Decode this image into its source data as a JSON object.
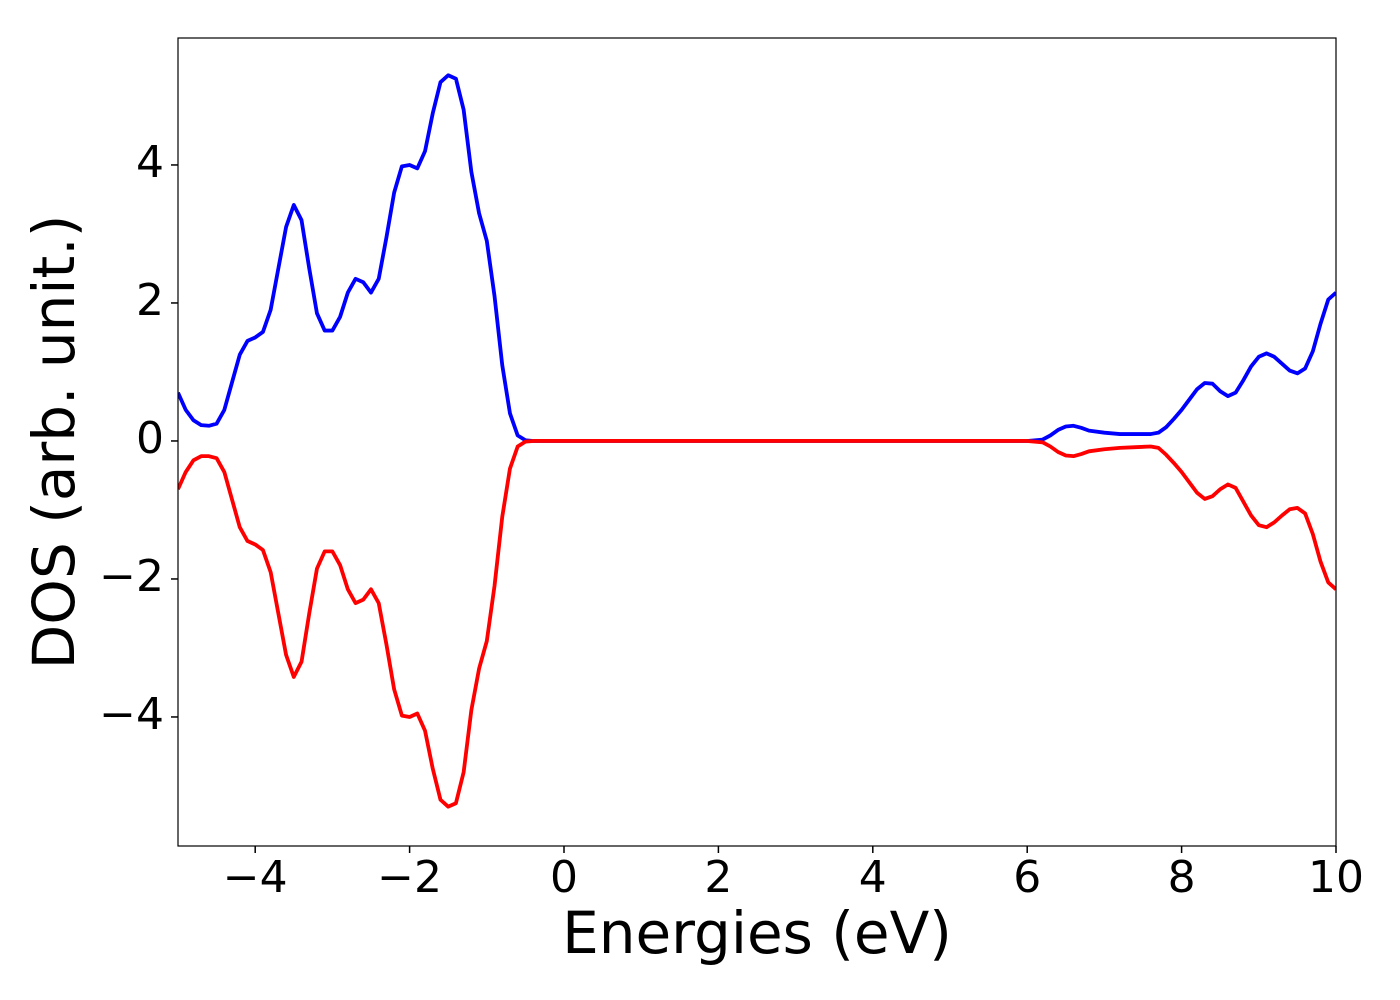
{
  "chart_data": {
    "type": "line",
    "x_label": "Energies (eV)",
    "y_label": "DOS (arb. unit.)",
    "x": [
      -5.0,
      -4.9,
      -4.8,
      -4.7,
      -4.6,
      -4.5,
      -4.4,
      -4.3,
      -4.2,
      -4.1,
      -4.0,
      -3.9,
      -3.8,
      -3.7,
      -3.6,
      -3.5,
      -3.4,
      -3.3,
      -3.2,
      -3.1,
      -3.0,
      -2.9,
      -2.8,
      -2.7,
      -2.6,
      -2.5,
      -2.4,
      -2.3,
      -2.2,
      -2.1,
      -2.0,
      -1.9,
      -1.8,
      -1.7,
      -1.6,
      -1.5,
      -1.4,
      -1.3,
      -1.2,
      -1.1,
      -1.0,
      -0.9,
      -0.8,
      -0.7,
      -0.6,
      -0.5,
      -0.4,
      0,
      1,
      2,
      3,
      4,
      5,
      6,
      6.2,
      6.3,
      6.4,
      6.5,
      6.6,
      6.7,
      6.8,
      7.0,
      7.2,
      7.4,
      7.6,
      7.7,
      7.8,
      7.9,
      8.0,
      8.1,
      8.2,
      8.3,
      8.4,
      8.5,
      8.6,
      8.7,
      8.8,
      8.9,
      9.0,
      9.1,
      9.2,
      9.3,
      9.4,
      9.5,
      9.6,
      9.7,
      9.8,
      9.9,
      10.0
    ],
    "series": [
      {
        "color": "#0000ff",
        "values": [
          0.7,
          0.45,
          0.3,
          0.23,
          0.22,
          0.25,
          0.45,
          0.85,
          1.25,
          1.45,
          1.5,
          1.58,
          1.9,
          2.5,
          3.1,
          3.42,
          3.2,
          2.5,
          1.85,
          1.6,
          1.6,
          1.8,
          2.15,
          2.35,
          2.3,
          2.15,
          2.35,
          2.95,
          3.6,
          3.98,
          4.0,
          3.95,
          4.2,
          4.75,
          5.2,
          5.3,
          5.25,
          4.8,
          3.9,
          3.3,
          2.9,
          2.1,
          1.1,
          0.4,
          0.08,
          0.01,
          0,
          0,
          0,
          0,
          0,
          0,
          0,
          0,
          0.02,
          0.08,
          0.16,
          0.21,
          0.22,
          0.19,
          0.15,
          0.12,
          0.1,
          0.1,
          0.1,
          0.12,
          0.2,
          0.32,
          0.45,
          0.6,
          0.75,
          0.84,
          0.83,
          0.72,
          0.65,
          0.7,
          0.88,
          1.08,
          1.22,
          1.27,
          1.22,
          1.12,
          1.02,
          0.98,
          1.05,
          1.3,
          1.7,
          2.05,
          2.15
        ]
      },
      {
        "color": "#ff0000",
        "values": [
          -0.7,
          -0.45,
          -0.28,
          -0.22,
          -0.22,
          -0.25,
          -0.45,
          -0.85,
          -1.25,
          -1.45,
          -1.5,
          -1.58,
          -1.9,
          -2.5,
          -3.1,
          -3.42,
          -3.2,
          -2.5,
          -1.85,
          -1.6,
          -1.6,
          -1.8,
          -2.15,
          -2.35,
          -2.3,
          -2.15,
          -2.35,
          -2.95,
          -3.6,
          -3.98,
          -4.0,
          -3.95,
          -4.2,
          -4.75,
          -5.2,
          -5.3,
          -5.25,
          -4.8,
          -3.9,
          -3.3,
          -2.9,
          -2.1,
          -1.1,
          -0.4,
          -0.08,
          -0.01,
          0,
          0,
          0,
          0,
          0,
          0,
          0,
          0,
          -0.02,
          -0.08,
          -0.16,
          -0.21,
          -0.22,
          -0.19,
          -0.15,
          -0.12,
          -0.1,
          -0.09,
          -0.08,
          -0.1,
          -0.2,
          -0.32,
          -0.45,
          -0.6,
          -0.75,
          -0.84,
          -0.8,
          -0.7,
          -0.63,
          -0.68,
          -0.88,
          -1.08,
          -1.22,
          -1.25,
          -1.18,
          -1.08,
          -0.99,
          -0.97,
          -1.05,
          -1.35,
          -1.75,
          -2.05,
          -2.15
        ]
      }
    ],
    "xlim": [
      -5,
      10
    ],
    "xticks": [
      {
        "value": -4,
        "label": "−4"
      },
      {
        "value": -2,
        "label": "−2"
      },
      0,
      2,
      4,
      6,
      8,
      10
    ],
    "ylim": [
      -5.87,
      5.84
    ],
    "yticks": [
      {
        "value": -4,
        "label": "−4"
      },
      {
        "value": -2,
        "label": "−2"
      },
      0,
      2,
      4
    ],
    "grid": false
  }
}
